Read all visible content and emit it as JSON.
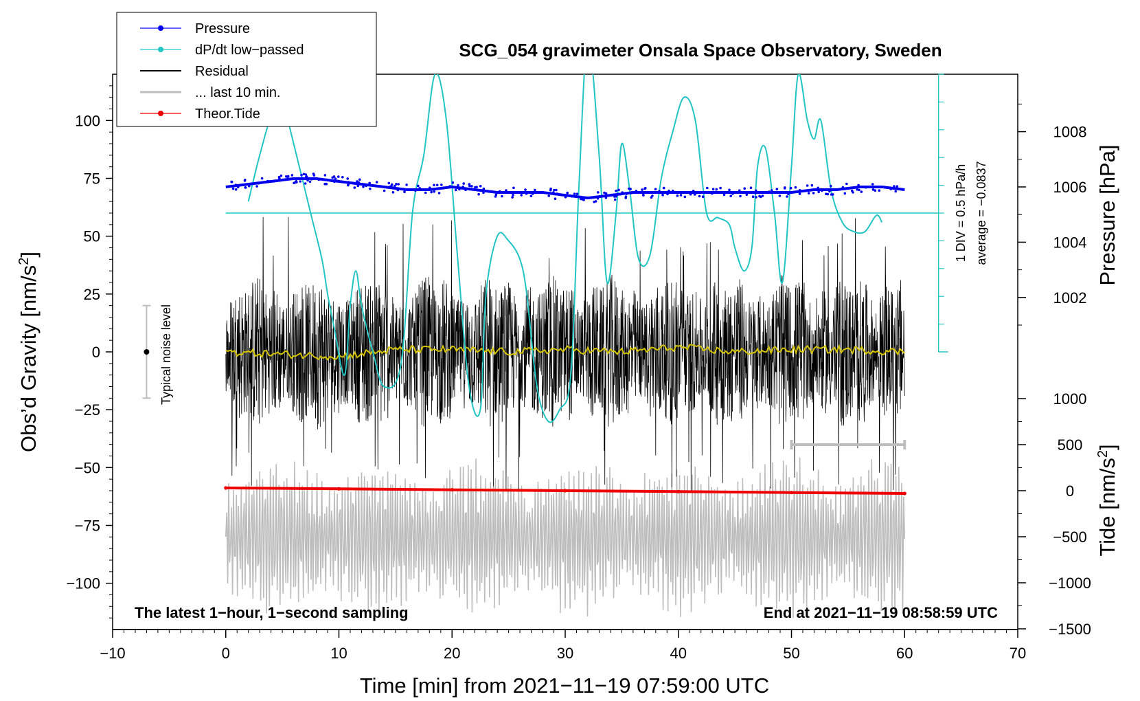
{
  "chart_data": {
    "type": "line",
    "title": "SCG_054 gravimeter Onsala Space Observatory, Sweden",
    "xlabel": "Time [min] from 2021−11−19 07:59:00 UTC",
    "ylabel_left_main": "Obs’d Gravity [nm/s",
    "ylabel_left_sup": "2",
    "ylabel_left_end": "]",
    "ylabel_right_pressure": "Pressure [hPa]",
    "ylabel_right_tide_main": "Tide [nm/s",
    "ylabel_right_tide_sup": "2",
    "ylabel_right_tide_end": "]",
    "xlim": [
      -10,
      70
    ],
    "ylim_gravity": [
      -120,
      120
    ],
    "ylim_tide": [
      -1500,
      1000
    ],
    "ylim_pressure": [
      997,
      1009.7
    ],
    "x_ticks": [
      "−10",
      "0",
      "10",
      "20",
      "30",
      "40",
      "50",
      "60",
      "70"
    ],
    "y_ticks_gravity": [
      "100",
      "75",
      "50",
      "25",
      "0",
      "−25",
      "−50",
      "−75",
      "−100"
    ],
    "y_ticks_pressure": [
      "1008",
      "1006",
      "1004",
      "1002"
    ],
    "y_ticks_tide": [
      "1000",
      "500",
      "0",
      "−500",
      "−1000",
      "−1500"
    ],
    "legend": [
      {
        "label": "Pressure",
        "color": "#0000ee",
        "style": "dot-line"
      },
      {
        "label": "dP/dt low−passed",
        "color": "#22c4c4",
        "style": "dot-line"
      },
      {
        "label": "Residual",
        "color": "#000000",
        "style": "line"
      },
      {
        "label": "... last 10 min.",
        "color": "#bdbdbd",
        "style": "line"
      },
      {
        "label": "Theor.Tide",
        "color": "#ee0000",
        "style": "dot-line"
      }
    ],
    "noise_label": "Typical noise level",
    "noise_range": [
      -20,
      20
    ],
    "noise_x": -7,
    "dpdt_scale_label": "1 DIV = 0.5 hPa/h",
    "dpdt_average_label": "average = −0.0837",
    "dpdt_axis_x": 63,
    "dpdt_divisions": 10,
    "dpdt_baseline_gravity": 60,
    "footer_left": "The latest 1−hour, 1−second sampling",
    "footer_right": "End at 2021−11−19 08:58:59 UTC",
    "bracket_x": [
      50,
      60
    ],
    "bracket_tide": 500,
    "series": [
      {
        "name": "Pressure",
        "axis": "pressure",
        "x": [
          0,
          2,
          4,
          6,
          8,
          10,
          12,
          14,
          16,
          18,
          20,
          22,
          24,
          26,
          28,
          30,
          32,
          34,
          36,
          38,
          40,
          42,
          44,
          46,
          48,
          50,
          52,
          54,
          56,
          58,
          60
        ],
        "y": [
          1006.0,
          1006.1,
          1006.2,
          1006.3,
          1006.3,
          1006.2,
          1006.1,
          1006.0,
          1005.9,
          1005.9,
          1006.0,
          1005.9,
          1005.8,
          1005.8,
          1005.8,
          1005.7,
          1005.6,
          1005.7,
          1005.8,
          1005.8,
          1005.8,
          1005.8,
          1005.8,
          1005.8,
          1005.8,
          1005.8,
          1005.9,
          1005.9,
          1006.0,
          1006.0,
          1005.9
        ]
      },
      {
        "name": "dP/dt low-passed",
        "axis": "gravity",
        "x": [
          2.0,
          3.0,
          4.2,
          5.0,
          6.0,
          7.5,
          8.5,
          9.0,
          9.6,
          10.5,
          11.0,
          11.5,
          12.0,
          13.0,
          14.0,
          15.5,
          16.5,
          17.5,
          18.5,
          19.5,
          20.5,
          21.5,
          22.5,
          23.0,
          24.0,
          25.0,
          26.0,
          26.6,
          27.5,
          28.5,
          29.5,
          30.5,
          31.2,
          32.0,
          33.0,
          33.7,
          34.5,
          35.0,
          35.7,
          36.5,
          37.5,
          38.5,
          39.5,
          40.5,
          41.5,
          42.5,
          43.5,
          44.5,
          45.0,
          45.8,
          46.5,
          47.0,
          47.7,
          48.5,
          49.2,
          50.0,
          50.6,
          51.4,
          52.0,
          52.6,
          53.5,
          54.5,
          55.5,
          56.5,
          57.5,
          58.0
        ],
        "y": [
          65,
          85,
          105,
          108,
          90,
          60,
          40,
          25,
          10,
          -10,
          20,
          35,
          20,
          0,
          -15,
          -5,
          60,
          85,
          120,
          100,
          40,
          -15,
          -25,
          25,
          50,
          48,
          40,
          25,
          -15,
          -30,
          -25,
          -10,
          70,
          135,
          85,
          30,
          60,
          90,
          70,
          40,
          42,
          75,
          95,
          110,
          100,
          60,
          58,
          55,
          45,
          35,
          45,
          80,
          88,
          60,
          30,
          80,
          120,
          100,
          92,
          100,
          70,
          56,
          52,
          52,
          59,
          56
        ]
      },
      {
        "name": "Residual",
        "axis": "gravity",
        "x": [
          0,
          60
        ],
        "envelope": [
          -40,
          40
        ]
      },
      {
        "name": "Residual smoothed",
        "axis": "gravity",
        "x": [
          0,
          5,
          10,
          15,
          20,
          25,
          30,
          35,
          40,
          45,
          50,
          55,
          60
        ],
        "y": [
          0,
          -1,
          -2,
          1,
          1,
          0,
          1,
          0,
          2,
          0,
          1,
          1,
          0
        ]
      },
      {
        "name": "... last 10 min.",
        "axis": "tide",
        "x": [
          0,
          60
        ],
        "envelope": [
          -1500,
          500
        ]
      },
      {
        "name": "Theor.Tide",
        "axis": "tide",
        "x": [
          0,
          10,
          20,
          30,
          40,
          50,
          60
        ],
        "y": [
          30,
          20,
          10,
          0,
          -10,
          -20,
          -30
        ]
      }
    ]
  }
}
